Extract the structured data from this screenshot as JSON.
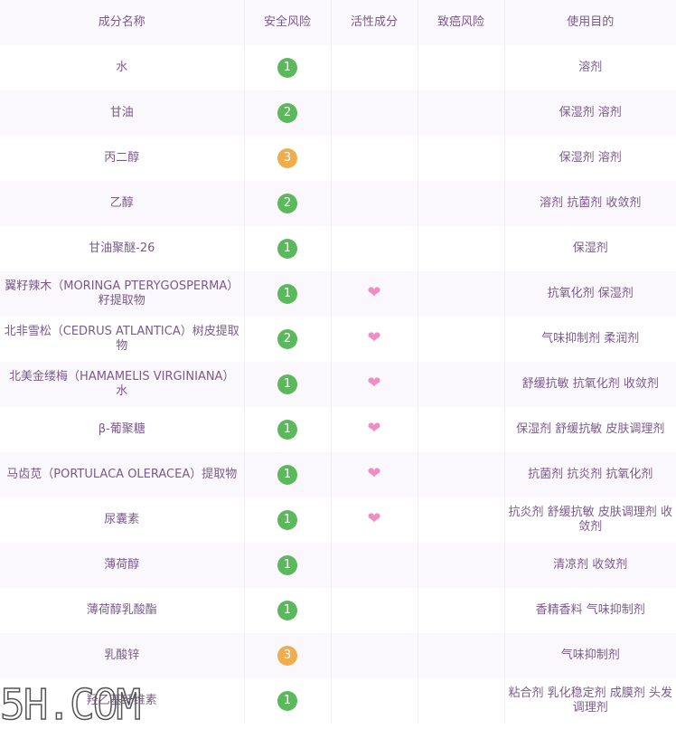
{
  "headers": [
    "成分名称",
    "安全风险",
    "活性成分",
    "致癌风险",
    "使用目的"
  ],
  "colors": {
    "green": "#5cb85c",
    "orange": "#f0ad4e",
    "heart": "#ee8fc4"
  },
  "rows": [
    {
      "name": "水",
      "risk": "1",
      "active": false,
      "purpose": "溶剂"
    },
    {
      "name": "甘油",
      "risk": "2",
      "active": false,
      "purpose": "保湿剂 溶剂"
    },
    {
      "name": "丙二醇",
      "risk": "3",
      "active": false,
      "purpose": "保湿剂 溶剂"
    },
    {
      "name": "乙醇",
      "risk": "2",
      "active": false,
      "purpose": "溶剂 抗菌剂 收敛剂"
    },
    {
      "name": "甘油聚醚-26",
      "risk": "1",
      "active": false,
      "purpose": "保湿剂"
    },
    {
      "name": "翼籽辣木（MORINGA PTERYGOSPERMA）籽提取物",
      "risk": "1",
      "active": true,
      "purpose": "抗氧化剂 保湿剂"
    },
    {
      "name": "北非雪松（CEDRUS ATLANTICA）树皮提取物",
      "risk": "2",
      "active": true,
      "purpose": "气味抑制剂 柔润剂"
    },
    {
      "name": "北美金缕梅（HAMAMELIS VIRGINIANA）水",
      "risk": "1",
      "active": true,
      "purpose": "舒缓抗敏 抗氧化剂 收敛剂"
    },
    {
      "name": "β-葡聚糖",
      "risk": "1",
      "active": true,
      "purpose": "保湿剂 舒缓抗敏 皮肤调理剂"
    },
    {
      "name": "马齿苋（PORTULACA OLERACEA）提取物",
      "risk": "1",
      "active": true,
      "purpose": "抗菌剂 抗炎剂 抗氧化剂"
    },
    {
      "name": "尿囊素",
      "risk": "1",
      "active": true,
      "purpose": "抗炎剂 舒缓抗敏 皮肤调理剂 收敛剂"
    },
    {
      "name": "薄荷醇",
      "risk": "1",
      "active": false,
      "purpose": "清凉剂 收敛剂"
    },
    {
      "name": "薄荷醇乳酸酯",
      "risk": "1",
      "active": false,
      "purpose": "香精香料 气味抑制剂"
    },
    {
      "name": "乳酸锌",
      "risk": "3",
      "active": false,
      "purpose": "气味抑制剂"
    },
    {
      "name": "羟乙基纤维素",
      "risk": "1",
      "active": false,
      "purpose": "粘合剂 乳化稳定剂 成膜剂 头发调理剂"
    }
  ],
  "watermark": "5H.COM"
}
